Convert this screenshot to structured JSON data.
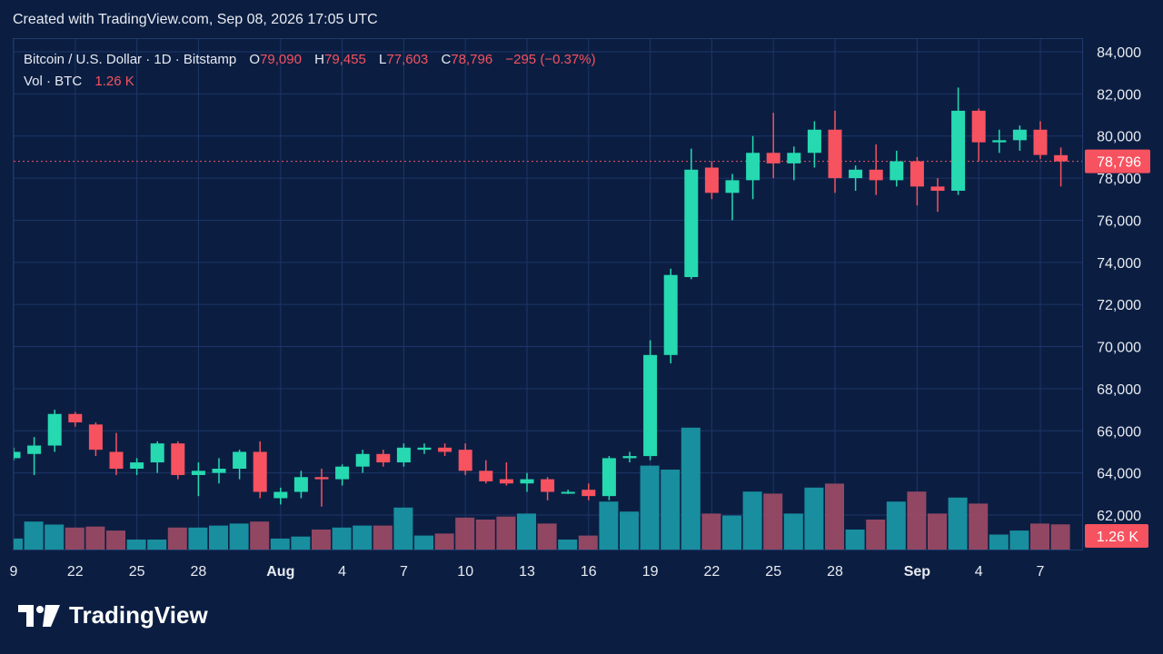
{
  "header": {
    "created_text": "Created with TradingView.com, Sep 08, 2026 17:05 UTC"
  },
  "legend": {
    "symbol": "Bitcoin / U.S. Dollar · 1D · Bitstamp",
    "open_label": "O",
    "open": "79,090",
    "high_label": "H",
    "high": "79,455",
    "low_label": "L",
    "low": "77,603",
    "close_label": "C",
    "close": "78,796",
    "change": "−295 (−0.37%)",
    "vol_label": "Vol · BTC",
    "vol_value": "1.26 K"
  },
  "brand": {
    "name": "TradingView",
    "logo": "tradingview-logo-icon"
  },
  "colors": {
    "up": "#26d9b0",
    "down": "#f7525f",
    "vol_up": "#1a9aa8",
    "vol_down": "#a04b66",
    "grid": "#1d3666",
    "background": "#0b1e42"
  },
  "chart_data": {
    "type": "candlestick",
    "price_axis": {
      "range": [
        60500,
        85000
      ],
      "ticks": [
        {
          "value": 84000,
          "label": "84,000"
        },
        {
          "value": 82000,
          "label": "82,000"
        },
        {
          "value": 80000,
          "label": "80,000"
        },
        {
          "value": 78000,
          "label": "78,000"
        },
        {
          "value": 76000,
          "label": "76,000"
        },
        {
          "value": 74000,
          "label": "74,000"
        },
        {
          "value": 72000,
          "label": "72,000"
        },
        {
          "value": 70000,
          "label": "70,000"
        },
        {
          "value": 68000,
          "label": "68,000"
        },
        {
          "value": 66000,
          "label": "66,000"
        },
        {
          "value": 64000,
          "label": "64,000"
        },
        {
          "value": 62000,
          "label": "62,000"
        }
      ]
    },
    "last_price": {
      "value": 78796,
      "label": "78,796"
    },
    "last_volume": {
      "label": "1.26 K"
    },
    "time_axis": [
      {
        "label": "9",
        "index": 0,
        "bold": false
      },
      {
        "label": "22",
        "index": 3,
        "bold": false
      },
      {
        "label": "25",
        "index": 6,
        "bold": false
      },
      {
        "label": "28",
        "index": 9,
        "bold": false
      },
      {
        "label": "Aug",
        "index": 13,
        "bold": true
      },
      {
        "label": "4",
        "index": 16,
        "bold": false
      },
      {
        "label": "7",
        "index": 19,
        "bold": false
      },
      {
        "label": "10",
        "index": 22,
        "bold": false
      },
      {
        "label": "13",
        "index": 25,
        "bold": false
      },
      {
        "label": "16",
        "index": 28,
        "bold": false
      },
      {
        "label": "19",
        "index": 31,
        "bold": false
      },
      {
        "label": "22",
        "index": 34,
        "bold": false
      },
      {
        "label": "25",
        "index": 37,
        "bold": false
      },
      {
        "label": "28",
        "index": 40,
        "bold": false
      },
      {
        "label": "Sep",
        "index": 44,
        "bold": true
      },
      {
        "label": "4",
        "index": 47,
        "bold": false
      },
      {
        "label": "7",
        "index": 50,
        "bold": false
      }
    ],
    "candles": [
      {
        "o": 64700,
        "h": 65200,
        "l": 64600,
        "c": 65000,
        "v": 0.55
      },
      {
        "o": 64900,
        "h": 65700,
        "l": 63900,
        "c": 65300,
        "v": 1.4
      },
      {
        "o": 65300,
        "h": 67000,
        "l": 65000,
        "c": 66800,
        "v": 1.25
      },
      {
        "o": 66800,
        "h": 66900,
        "l": 66200,
        "c": 66400,
        "v": 1.1
      },
      {
        "o": 66300,
        "h": 66400,
        "l": 64800,
        "c": 65100,
        "v": 1.15
      },
      {
        "o": 65000,
        "h": 65900,
        "l": 63900,
        "c": 64200,
        "v": 0.95
      },
      {
        "o": 64200,
        "h": 64700,
        "l": 63900,
        "c": 64500,
        "v": 0.5
      },
      {
        "o": 64500,
        "h": 65500,
        "l": 64000,
        "c": 65400,
        "v": 0.5
      },
      {
        "o": 65400,
        "h": 65500,
        "l": 63700,
        "c": 63900,
        "v": 1.1
      },
      {
        "o": 63900,
        "h": 64500,
        "l": 62900,
        "c": 64100,
        "v": 1.1
      },
      {
        "o": 64000,
        "h": 64700,
        "l": 63500,
        "c": 64200,
        "v": 1.2
      },
      {
        "o": 64200,
        "h": 65100,
        "l": 63700,
        "c": 65000,
        "v": 1.3
      },
      {
        "o": 65000,
        "h": 65500,
        "l": 62800,
        "c": 63100,
        "v": 1.4
      },
      {
        "o": 62800,
        "h": 63300,
        "l": 62500,
        "c": 63100,
        "v": 0.55
      },
      {
        "o": 63100,
        "h": 64100,
        "l": 62800,
        "c": 63800,
        "v": 0.65
      },
      {
        "o": 63800,
        "h": 64200,
        "l": 62400,
        "c": 63700,
        "v": 1.0
      },
      {
        "o": 63700,
        "h": 64400,
        "l": 63400,
        "c": 64300,
        "v": 1.1
      },
      {
        "o": 64300,
        "h": 65100,
        "l": 64000,
        "c": 64900,
        "v": 1.2
      },
      {
        "o": 64900,
        "h": 65100,
        "l": 64300,
        "c": 64500,
        "v": 1.2
      },
      {
        "o": 64500,
        "h": 65400,
        "l": 64300,
        "c": 65200,
        "v": 2.1
      },
      {
        "o": 65100,
        "h": 65400,
        "l": 64900,
        "c": 65200,
        "v": 0.7
      },
      {
        "o": 65200,
        "h": 65400,
        "l": 64800,
        "c": 65000,
        "v": 0.8
      },
      {
        "o": 65100,
        "h": 65400,
        "l": 63900,
        "c": 64100,
        "v": 1.6
      },
      {
        "o": 64100,
        "h": 64600,
        "l": 63500,
        "c": 63600,
        "v": 1.5
      },
      {
        "o": 63700,
        "h": 64500,
        "l": 63400,
        "c": 63500,
        "v": 1.65
      },
      {
        "o": 63500,
        "h": 64000,
        "l": 63100,
        "c": 63700,
        "v": 1.8
      },
      {
        "o": 63700,
        "h": 63800,
        "l": 62700,
        "c": 63100,
        "v": 1.3
      },
      {
        "o": 63100,
        "h": 63200,
        "l": 63000,
        "c": 63100,
        "v": 0.5
      },
      {
        "o": 63200,
        "h": 63500,
        "l": 62700,
        "c": 62900,
        "v": 0.7
      },
      {
        "o": 62900,
        "h": 64800,
        "l": 62700,
        "c": 64700,
        "v": 2.4
      },
      {
        "o": 64700,
        "h": 65000,
        "l": 64500,
        "c": 64800,
        "v": 1.9
      },
      {
        "o": 64800,
        "h": 70300,
        "l": 64600,
        "c": 69600,
        "v": 4.2
      },
      {
        "o": 69600,
        "h": 73700,
        "l": 69200,
        "c": 73400,
        "v": 4.0
      },
      {
        "o": 73300,
        "h": 79400,
        "l": 73200,
        "c": 78400,
        "v": 6.1
      },
      {
        "o": 78500,
        "h": 78800,
        "l": 77000,
        "c": 77300,
        "v": 1.8
      },
      {
        "o": 77300,
        "h": 78200,
        "l": 76000,
        "c": 77900,
        "v": 1.7
      },
      {
        "o": 77900,
        "h": 80000,
        "l": 77000,
        "c": 79200,
        "v": 2.9
      },
      {
        "o": 79200,
        "h": 81100,
        "l": 78000,
        "c": 78700,
        "v": 2.8
      },
      {
        "o": 78700,
        "h": 79500,
        "l": 77900,
        "c": 79200,
        "v": 1.8
      },
      {
        "o": 79200,
        "h": 80700,
        "l": 78500,
        "c": 80300,
        "v": 3.1
      },
      {
        "o": 80300,
        "h": 81200,
        "l": 77300,
        "c": 78000,
        "v": 3.3
      },
      {
        "o": 78000,
        "h": 78600,
        "l": 77400,
        "c": 78400,
        "v": 1.0
      },
      {
        "o": 78400,
        "h": 79600,
        "l": 77200,
        "c": 77900,
        "v": 1.5
      },
      {
        "o": 77900,
        "h": 79300,
        "l": 77600,
        "c": 78800,
        "v": 2.4
      },
      {
        "o": 78800,
        "h": 79000,
        "l": 76700,
        "c": 77600,
        "v": 2.9
      },
      {
        "o": 77600,
        "h": 78000,
        "l": 76400,
        "c": 77400,
        "v": 1.8
      },
      {
        "o": 77400,
        "h": 82300,
        "l": 77200,
        "c": 81200,
        "v": 2.6
      },
      {
        "o": 81200,
        "h": 81300,
        "l": 78800,
        "c": 79700,
        "v": 2.3
      },
      {
        "o": 79700,
        "h": 80300,
        "l": 79200,
        "c": 79800,
        "v": 0.75
      },
      {
        "o": 79800,
        "h": 80500,
        "l": 79300,
        "c": 80300,
        "v": 0.95
      },
      {
        "o": 80300,
        "h": 80700,
        "l": 78900,
        "c": 79100,
        "v": 1.3
      },
      {
        "o": 79090,
        "h": 79455,
        "l": 77603,
        "c": 78796,
        "v": 1.26
      }
    ]
  }
}
